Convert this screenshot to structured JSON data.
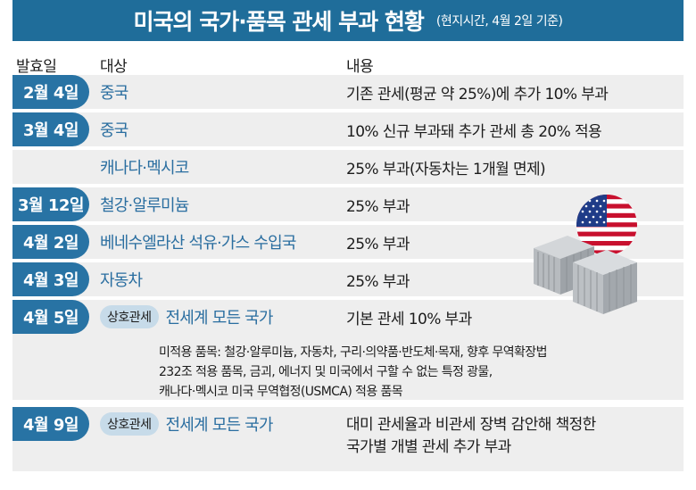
{
  "title": {
    "main": "미국의 국가·품목 관세 부과 현황",
    "sub": "(현지시간, 4월 2일 기준)"
  },
  "headers": {
    "date": "발효일",
    "target": "대상",
    "content": "내용"
  },
  "rows": [
    {
      "date": "2월 4일",
      "target": "중국",
      "content": "기존 관세(평균 약 25%)에 추가 10% 부과"
    },
    {
      "date": "3월 4일",
      "target": "중국",
      "content": "10% 신규 부과돼 추가 관세 총 20% 적용"
    },
    {
      "date": "",
      "target": "캐나다·멕시코",
      "content": "25% 부과(자동차는 1개월 면제)"
    },
    {
      "date": "3월 12일",
      "target": "철강·알루미늄",
      "content": "25% 부과"
    },
    {
      "date": "4월 2일",
      "target": "베네수엘라산 석유·가스 수입국",
      "content": "25% 부과"
    },
    {
      "date": "4월 3일",
      "target": "자동차",
      "content": "25% 부과"
    },
    {
      "date": "4월 5일",
      "badge": "상호관세",
      "target": "전세계 모든 국가",
      "content": "기본 관세 10% 부과",
      "exempt": [
        "미적용 품목: 철강·알루미늄, 자동차, 구리·의약품·반도체·목재, 향후 무역확장법",
        "232조 적용 품목, 금괴, 에너지 및 미국에서 구할 수 없는 특정 광물,",
        "캐나다·멕시코 미국 무역협정(USMCA) 적용 품목"
      ]
    },
    {
      "date": "4월 9일",
      "badge": "상호관세",
      "target": "전세계 모든 국가",
      "content_lines": [
        "대미 관세율과 비관세 장벽 감안해 책정한",
        "국가별 개별 관세 추가 부과"
      ]
    }
  ],
  "illustration": {
    "icons": [
      "us-flag-icon",
      "shipping-container-icon"
    ],
    "colors": {
      "flag_red": "#c8102e",
      "flag_blue": "#1f3c88",
      "container": "#a9aeb3"
    }
  },
  "colors": {
    "accent": "#1f6d9a",
    "tab": "#2873a4",
    "link_text": "#2a6ea0",
    "row_bg": "#eeeeee",
    "badge_bg": "#c7dbe9"
  }
}
